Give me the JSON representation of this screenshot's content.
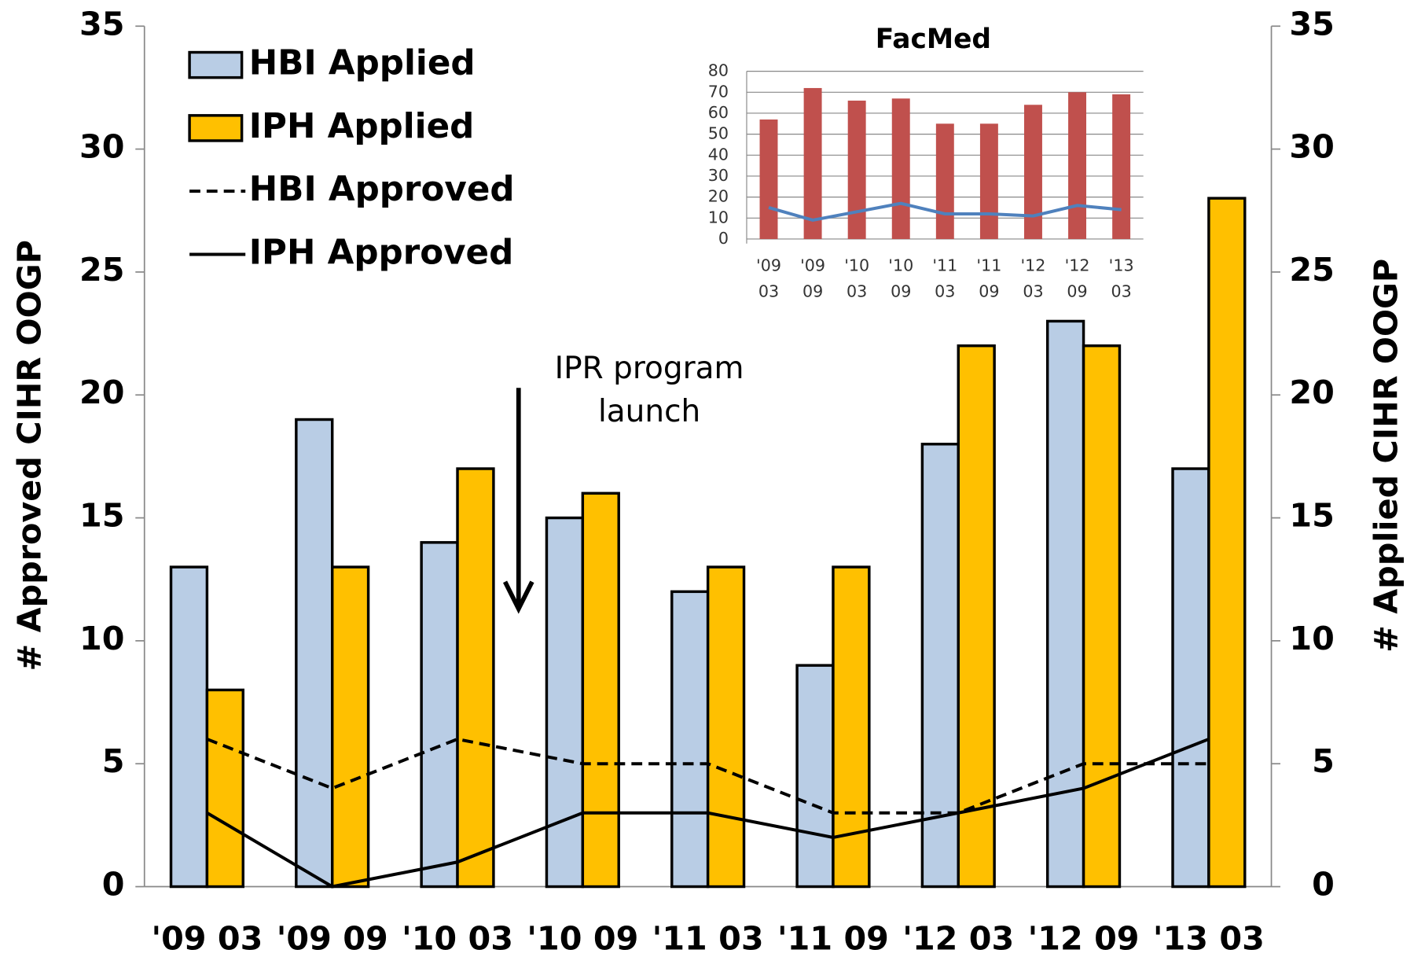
{
  "chart_data": [
    {
      "type": "bar",
      "categories": [
        "'09 03",
        "'09 09",
        "'10 03",
        "'10 09",
        "'11 03",
        "'11 09",
        "'12 03",
        "'12 09",
        "'13 03"
      ],
      "series": [
        {
          "name": "HBI Applied",
          "color": "#b9cde5",
          "axis": "y2",
          "style": "bar",
          "values": [
            13,
            19,
            14,
            15,
            12,
            9,
            18,
            23,
            17
          ]
        },
        {
          "name": "IPH Applied",
          "color": "#ffc000",
          "axis": "y2",
          "style": "bar",
          "values": [
            8,
            13,
            17,
            16,
            13,
            13,
            22,
            22,
            28
          ]
        },
        {
          "name": "HBI Approved",
          "color": "#000000",
          "style": "dashed",
          "values": [
            6,
            4,
            6,
            5,
            5,
            3,
            3,
            5,
            5
          ]
        },
        {
          "name": "IPH Approved",
          "color": "#000000",
          "style": "solid",
          "values": [
            3,
            0,
            1,
            3,
            3,
            2,
            3,
            4,
            6
          ]
        }
      ],
      "ylabel": "# Approved CIHR OOGP",
      "y2label": "# Applied CIHR OOGP",
      "ylim": [
        0,
        35
      ],
      "yticks": [
        0,
        5,
        10,
        15,
        20,
        25,
        30,
        35
      ],
      "y2lim": [
        0,
        35
      ],
      "y2ticks": [
        0,
        5,
        10,
        15,
        20,
        25,
        30,
        35
      ],
      "annotation": [
        "IPR program",
        "launch"
      ],
      "legend": "upper left"
    },
    {
      "type": "bar",
      "title": "FacMed",
      "categories": [
        "'09 03",
        "'09 09",
        "'10 03",
        "'10 09",
        "'11 03",
        "'11 09",
        "'12 03",
        "'12 09",
        "'13 03"
      ],
      "series": [
        {
          "style": "bar",
          "color": "#c0504d",
          "values": [
            57,
            72,
            66,
            67,
            55,
            55,
            64,
            70,
            69
          ]
        },
        {
          "style": "solid",
          "color": "#4f81bd",
          "values": [
            15,
            9,
            13,
            17,
            12,
            12,
            11,
            16,
            14
          ]
        }
      ],
      "ylim": [
        0,
        80
      ],
      "yticks": [
        0,
        10,
        20,
        30,
        40,
        50,
        60,
        70,
        80
      ],
      "grid": true
    }
  ]
}
